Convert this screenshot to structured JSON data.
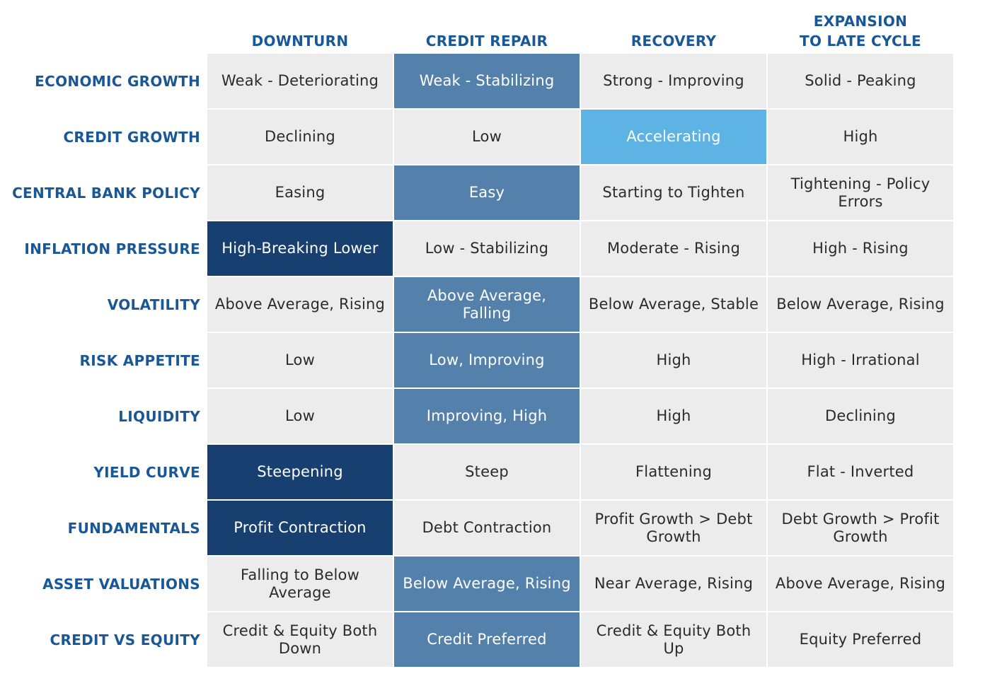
{
  "chart_data": {
    "type": "table",
    "columns": [
      "DOWNTURN",
      "CREDIT REPAIR",
      "RECOVERY",
      "EXPANSION\nTO LATE CYCLE"
    ],
    "rows": [
      {
        "label": "ECONOMIC GROWTH",
        "cells": [
          "Weak - Deteriorating",
          "Weak - Stabilizing",
          "Strong - Improving",
          "Solid - Peaking"
        ],
        "styles": [
          "",
          "mid",
          "",
          ""
        ]
      },
      {
        "label": "CREDIT GROWTH",
        "cells": [
          "Declining",
          "Low",
          "Accelerating",
          "High"
        ],
        "styles": [
          "",
          "",
          "bright",
          ""
        ]
      },
      {
        "label": "CENTRAL BANK POLICY",
        "cells": [
          "Easing",
          "Easy",
          "Starting to Tighten",
          "Tightening - Policy Errors"
        ],
        "styles": [
          "",
          "mid",
          "",
          ""
        ]
      },
      {
        "label": "INFLATION PRESSURE",
        "cells": [
          "High-Breaking Lower",
          "Low - Stabilizing",
          "Moderate - Rising",
          "High - Rising"
        ],
        "styles": [
          "dark",
          "",
          "",
          ""
        ]
      },
      {
        "label": "VOLATILITY",
        "cells": [
          "Above Average, Rising",
          "Above Average, Falling",
          "Below Average, Stable",
          "Below Average, Rising"
        ],
        "styles": [
          "",
          "mid",
          "",
          ""
        ]
      },
      {
        "label": "RISK APPETITE",
        "cells": [
          "Low",
          "Low, Improving",
          "High",
          "High - Irrational"
        ],
        "styles": [
          "",
          "mid",
          "",
          ""
        ]
      },
      {
        "label": "LIQUIDITY",
        "cells": [
          "Low",
          "Improving, High",
          "High",
          "Declining"
        ],
        "styles": [
          "",
          "mid",
          "",
          ""
        ]
      },
      {
        "label": "YIELD CURVE",
        "cells": [
          "Steepening",
          "Steep",
          "Flattening",
          "Flat - Inverted"
        ],
        "styles": [
          "dark",
          "",
          "",
          ""
        ]
      },
      {
        "label": "FUNDAMENTALS",
        "cells": [
          "Profit Contraction",
          "Debt Contraction",
          "Profit Growth > Debt Growth",
          "Debt Growth > Profit Growth"
        ],
        "styles": [
          "dark",
          "",
          "",
          ""
        ]
      },
      {
        "label": "ASSET VALUATIONS",
        "cells": [
          "Falling to Below Average",
          "Below Average, Rising",
          "Near Average, Rising",
          "Above Average, Rising"
        ],
        "styles": [
          "",
          "mid",
          "",
          ""
        ]
      },
      {
        "label": "CREDIT VS EQUITY",
        "cells": [
          "Credit & Equity Both Down",
          "Credit Preferred",
          "Credit & Equity Both Up",
          "Equity Preferred"
        ],
        "styles": [
          "",
          "mid",
          "",
          ""
        ]
      }
    ],
    "colors": {
      "label_text": "#1a5796",
      "default_fill": "#ececec",
      "mid": "#5381ab",
      "dark": "#173f70",
      "bright": "#5db3e4"
    }
  }
}
